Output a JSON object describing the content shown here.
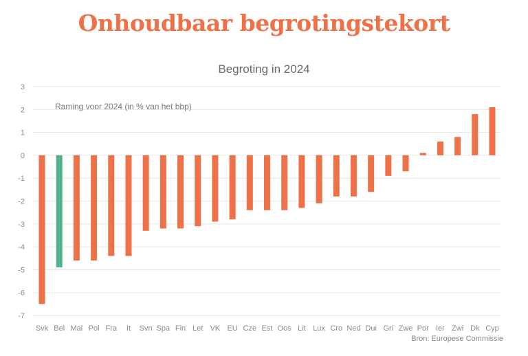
{
  "chart_data": {
    "type": "bar",
    "title": "Onhoudbaar begrotingstekort",
    "subtitle": "Begroting in 2024",
    "annotation": "Raming voor 2024 (in % van het bbp)",
    "source": "Bron: Europese Commissie",
    "xlabel": "",
    "ylabel": "",
    "ylim": [
      -7,
      3
    ],
    "yticks": [
      3,
      2,
      1,
      0,
      -1,
      -2,
      -3,
      -4,
      -5,
      -6,
      -7
    ],
    "grid": true,
    "categories": [
      "Svk",
      "Bel",
      "Mal",
      "Pol",
      "Fra",
      "It",
      "Svn",
      "Spa",
      "Fin",
      "Let",
      "VK",
      "EU",
      "Cze",
      "Est",
      "Oos",
      "Lit",
      "Lux",
      "Cro",
      "Ned",
      "Dui",
      "Gri",
      "Zwe",
      "Por",
      "Ier",
      "Zwi",
      "Dk",
      "Cyp"
    ],
    "values": [
      -6.5,
      -4.9,
      -4.6,
      -4.6,
      -4.4,
      -4.4,
      -3.3,
      -3.2,
      -3.2,
      -3.1,
      -2.9,
      -2.8,
      -2.4,
      -2.4,
      -2.4,
      -2.3,
      -2.1,
      -1.8,
      -1.8,
      -1.6,
      -0.9,
      -0.7,
      0.1,
      0.6,
      0.8,
      1.8,
      2.1
    ],
    "highlight": "Bel",
    "colors": {
      "default": "#ee7148",
      "highlight": "#52b38a",
      "grid": "#e6e6e6"
    }
  }
}
